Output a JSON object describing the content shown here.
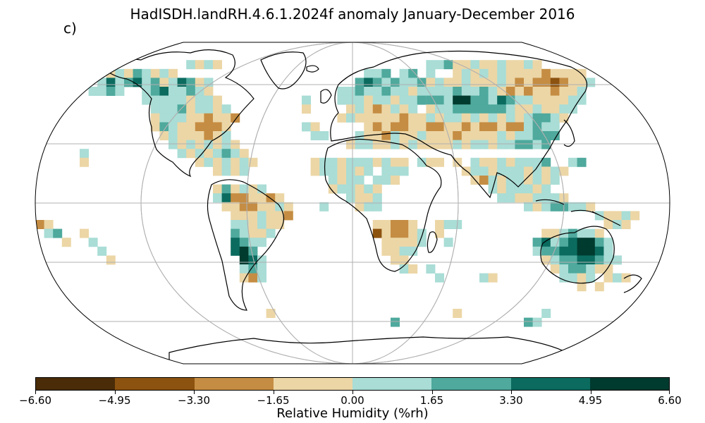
{
  "title": "HadISDH.landRH.4.6.1.2024f anomaly January-December 2016",
  "panel_label": "c)",
  "colorbar": {
    "label": "Relative Humidity (%rh)",
    "ticks": [
      "−6.60",
      "−4.95",
      "−3.30",
      "−1.65",
      "0.00",
      "1.65",
      "3.30",
      "4.95",
      "6.60"
    ],
    "colors": [
      "#4a2c08",
      "#8c520f",
      "#c58d43",
      "#ecd6a6",
      "#a9ddd6",
      "#4fa99d",
      "#0b6b5f",
      "#003b2f"
    ]
  },
  "map": {
    "projection": "Robinson",
    "variable": "Relative Humidity anomaly",
    "gridlines": true,
    "coastlines": true
  }
}
